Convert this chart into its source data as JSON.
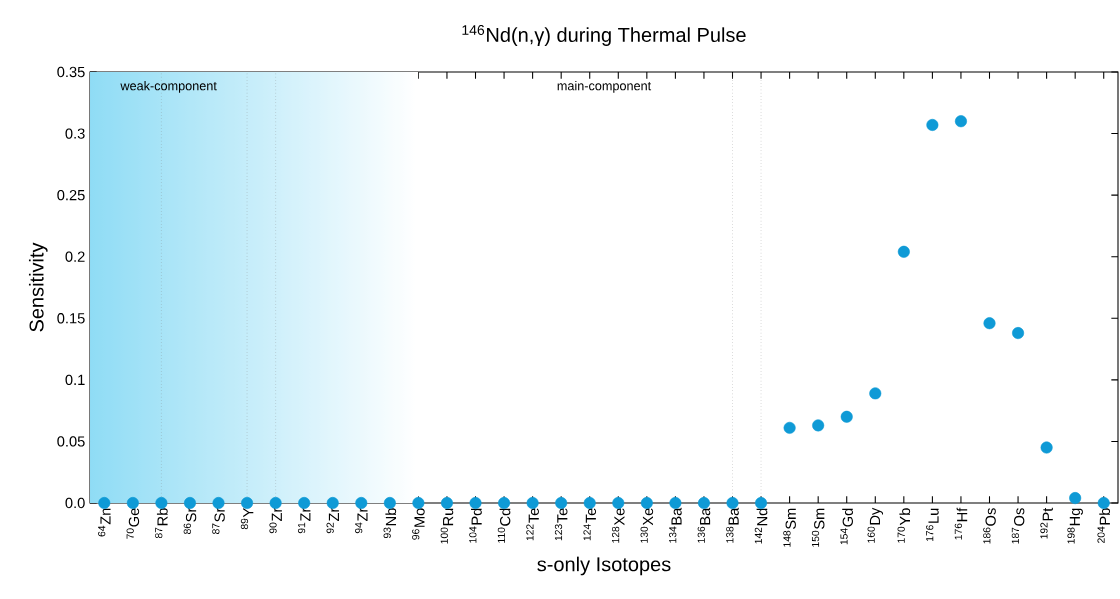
{
  "chart_data": {
    "type": "scatter",
    "title": "$^{146}$Nd(n,γ) during Thermal Pulse",
    "xlabel": "s-only Isotopes",
    "ylabel": "Sensitivity",
    "categories": [
      "$^{64}$Zn",
      "$^{70}$Ge",
      "$^{87}$Rb",
      "$^{86}$Sr",
      "$^{87}$Sr",
      "$^{89}$Y",
      "$^{90}$Zr",
      "$^{91}$Zr",
      "$^{92}$Zr",
      "$^{94}$Zr",
      "$^{93}$Nb",
      "$^{96}$Mo",
      "$^{100}$Ru",
      "$^{104}$Pd",
      "$^{110}$Cd",
      "$^{122}$Te",
      "$^{123}$Te",
      "$^{124}$Te",
      "$^{128}$Xe",
      "$^{130}$Xe",
      "$^{134}$Ba",
      "$^{136}$Ba",
      "$^{138}$Ba",
      "$^{142}$Nd",
      "$^{148}$Sm",
      "$^{150}$Sm",
      "$^{154}$Gd",
      "$^{160}$Dy",
      "$^{170}$Yb",
      "$^{176}$Lu",
      "$^{176}$Hf",
      "$^{186}$Os",
      "$^{187}$Os",
      "$^{192}$Pt",
      "$^{198}$Hg",
      "$^{204}$Pb"
    ],
    "series": [
      {
        "color": "#0f9ad6",
        "values": [
          0,
          0,
          0,
          0,
          0,
          0,
          0,
          0,
          0,
          0,
          0,
          0,
          0,
          0,
          0,
          0,
          0,
          0,
          0,
          0,
          0,
          0,
          0,
          0,
          0.061,
          0.063,
          0.07,
          0.089,
          0.204,
          0.307,
          0.31,
          0.146,
          0.138,
          0.045,
          0.004,
          0
        ]
      }
    ],
    "ylim": [
      0,
      0.35
    ],
    "yticks": [
      {
        "value": 0,
        "label": "0.0"
      },
      0.05,
      0.1,
      0.15,
      0.2,
      0.25,
      0.3,
      0.35
    ],
    "marker": "circle",
    "grid": false,
    "bands": [
      {
        "axis": "x",
        "from": "$^{64}$Zn",
        "to": "$^{96}$Mo",
        "color": "#8fdcf5"
      }
    ],
    "ref_lines": [
      {
        "axis": "x",
        "value": "$^{87}$Rb",
        "line_style": "dotted"
      },
      {
        "axis": "x",
        "value": "$^{89}$Y",
        "line_style": "dotted"
      },
      {
        "axis": "x",
        "value": "$^{90}$Zr",
        "line_style": "dotted"
      },
      {
        "axis": "x",
        "value": "$^{138}$Ba",
        "line_style": "dotted"
      },
      {
        "axis": "x",
        "value": "$^{142}$Nd",
        "line_style": "dotted"
      }
    ],
    "annotations": [
      "weak-component",
      "main-component"
    ]
  }
}
